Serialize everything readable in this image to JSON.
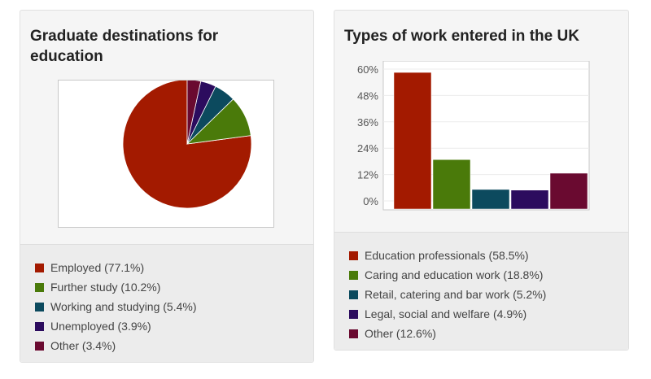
{
  "cards": [
    {
      "title": "Graduate destinations for education",
      "chart_data": {
        "type": "pie",
        "title": "Graduate destinations for education",
        "categories": [
          "Employed",
          "Further study",
          "Working and studying",
          "Unemployed",
          "Other"
        ],
        "values": [
          77.1,
          10.2,
          5.4,
          3.9,
          3.4
        ],
        "colors": [
          "#a31a00",
          "#4a7a0a",
          "#0c4a5e",
          "#2c0c5e",
          "#6a0a30"
        ],
        "legend": "bottom",
        "legend_labels": [
          "Employed (77.1%)",
          "Further study (10.2%)",
          "Working and studying (5.4%)",
          "Unemployed (3.9%)",
          "Other (3.4%)"
        ]
      }
    },
    {
      "title": "Types of work entered in the UK",
      "chart_data": {
        "type": "bar",
        "title": "Types of work entered in the UK",
        "categories": [
          "Education professionals",
          "Caring and education work",
          "Retail, catering and bar work",
          "Legal, social and welfare",
          "Other"
        ],
        "values": [
          58.5,
          18.8,
          5.2,
          4.9,
          12.6
        ],
        "colors": [
          "#a31a00",
          "#4a7a0a",
          "#0c4a5e",
          "#2c0c5e",
          "#6a0a30"
        ],
        "yticks": [
          "0%",
          "12%",
          "24%",
          "36%",
          "48%",
          "60%"
        ],
        "ylim": [
          0,
          60
        ],
        "grid": true,
        "legend": "bottom",
        "legend_labels": [
          "Education professionals (58.5%)",
          "Caring and education work (18.8%)",
          "Retail, catering and bar work (5.2%)",
          "Legal, social and welfare (4.9%)",
          "Other (12.6%)"
        ]
      }
    }
  ]
}
